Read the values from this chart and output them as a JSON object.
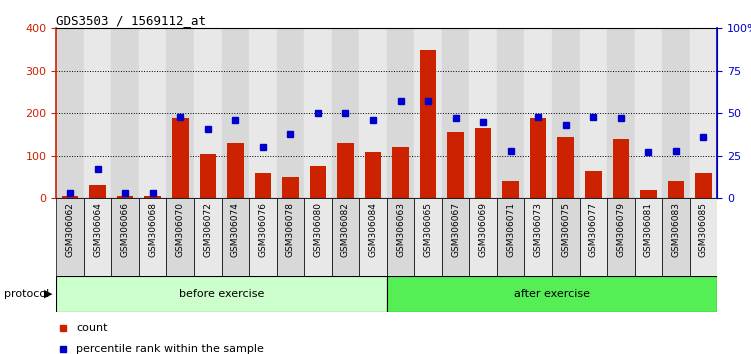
{
  "title": "GDS3503 / 1569112_at",
  "categories": [
    "GSM306062",
    "GSM306064",
    "GSM306066",
    "GSM306068",
    "GSM306070",
    "GSM306072",
    "GSM306074",
    "GSM306076",
    "GSM306078",
    "GSM306080",
    "GSM306082",
    "GSM306084",
    "GSM306063",
    "GSM306065",
    "GSM306067",
    "GSM306069",
    "GSM306071",
    "GSM306073",
    "GSM306075",
    "GSM306077",
    "GSM306079",
    "GSM306081",
    "GSM306083",
    "GSM306085"
  ],
  "count": [
    5,
    30,
    5,
    5,
    190,
    105,
    130,
    60,
    50,
    75,
    130,
    110,
    120,
    350,
    155,
    165,
    40,
    190,
    145,
    65,
    140,
    20,
    40,
    60
  ],
  "percentile": [
    3,
    17,
    3,
    3,
    48,
    41,
    46,
    30,
    38,
    50,
    50,
    46,
    57,
    57,
    47,
    45,
    28,
    48,
    43,
    48,
    47,
    27,
    28,
    36
  ],
  "before_exercise_count": 12,
  "after_exercise_count": 12,
  "bar_color": "#cc2200",
  "marker_color": "#0000cc",
  "before_label": "before exercise",
  "after_label": "after exercise",
  "protocol_label": "protocol",
  "legend_count": "count",
  "legend_pct": "percentile rank within the sample",
  "left_ylim": [
    0,
    400
  ],
  "right_ylim": [
    0,
    100
  ],
  "left_yticks": [
    0,
    100,
    200,
    300,
    400
  ],
  "right_yticks": [
    0,
    25,
    50,
    75,
    100
  ],
  "right_yticklabels": [
    "0",
    "25",
    "50",
    "75",
    "100%"
  ],
  "bg_before": "#ccffcc",
  "bg_after": "#55ee55",
  "cell_color_even": "#d8d8d8",
  "cell_color_odd": "#e8e8e8"
}
